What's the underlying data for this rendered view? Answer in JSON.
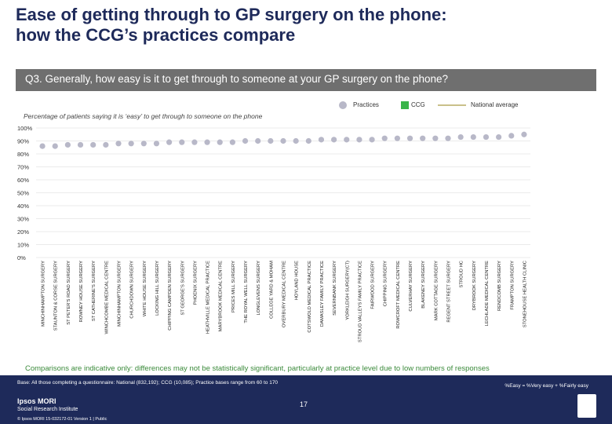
{
  "title": {
    "line1": "Ease of getting through to GP surgery on the phone:",
    "line2": "how the CCG’s practices compare"
  },
  "question": "Q3. Generally, how easy is it to get through to someone at your GP surgery on the phone?",
  "legend": {
    "practices": "Practices",
    "ccg": "CCG",
    "national": "National average"
  },
  "subtitle": "Percentage of patients saying it is ‘easy’ to get through to someone on the phone",
  "colors": {
    "practice_dot": "#b8b8c8",
    "ccg_marker": "#3ab54a",
    "national_line": "#c9c08a",
    "grid": "#d8d8d8",
    "title": "#1e2a5a",
    "question_bar": "#6f6f6f",
    "footer": "#1e2a5a",
    "disclaimer": "#3a8a3a"
  },
  "chart_data": {
    "type": "scatter",
    "ylim": [
      0,
      100
    ],
    "yticks": [
      "0%",
      "10%",
      "20%",
      "30%",
      "40%",
      "50%",
      "60%",
      "70%",
      "80%",
      "90%",
      "100%"
    ],
    "categories": [
      "MINCHINHAMPTON SURGERY",
      "STAUNTON & CORSE SURGERY",
      "ST PETER'S ROAD SURGERY",
      "ROWNEY HOUSE SURGERY",
      "ST CATHERINE'S SURGERY",
      "WINCHCOMBE MEDICAL CENTRE",
      "MINCHINHAMPTON SURGERY",
      "CHURCHDOWN SURGERY",
      "WHITE HOUSE SURGERY",
      "LOCKING HILL SURGERY",
      "CHIPPING CAMPDEN SURGERY",
      "ST GEORGE'S SURGERY",
      "PHOENIX SURGERY",
      "HEATHVILLE MEDICAL PRACTICE",
      "MARYBROOK MEDICAL CENTRE",
      "PRICES MILL SURGERY",
      "THE ROYAL WELL SURGERY",
      "LONGLEVENS SURGERY",
      "COLLEGE YARD & MOHAM",
      "OVERBURY MEDICAL CENTRE",
      "HOYLAND HOUSE",
      "COTSWOLD MEDICAL PRACTICE",
      "DAMASLEY FAMILY PRACTICE",
      "SEVERNBANK SURGERY",
      "YORKLEIGH SURGERY(CT)",
      "STROUD VALLEYS FAMILY PRACTICE",
      "FAIRWOOD SURGERY",
      "CHIPPING SURGERY",
      "ROWCROFT MEDICAL CENTRE",
      "CULVERHAY SURGERY",
      "BLAKENEY SURGERY",
      "MARK COTTAGE SURGERY",
      "REGENT STREET SURGERY",
      "STROUD HC",
      "DRYBROOK SURGERY",
      "LECHLADE MEDICAL CENTRE",
      "RENDCOMB SURGERY",
      "FRAMPTON SURGERY",
      "STONEHOUSE HEALTH CLINIC"
    ],
    "series": [
      {
        "values": [
          86,
          86,
          87,
          87,
          87,
          87,
          88,
          88,
          88,
          88,
          89,
          89,
          89,
          89,
          89,
          89,
          90,
          90,
          90,
          90,
          90,
          90,
          91,
          91,
          91,
          91,
          91,
          92,
          92,
          92,
          92,
          92,
          92,
          93,
          93,
          93,
          93,
          94,
          95
        ]
      }
    ],
    "ccg_value": null,
    "national_average": null
  },
  "disclaimer": "Comparisons are indicative only: differences may not be statistically significant, particularly at practice level due to low numbers of responses",
  "footer": {
    "base": "Base: All those completing a questionnaire: National (832,192); CCG (10,085); Practice bases range from 60 to 170",
    "easy_definition": "%Easy = %Very easy + %Fairly easy",
    "logo_name": "Ipsos MORI",
    "logo_sub": "Social Research Institute",
    "copyright": "© Ipsos MORI    15-032172-01 Version 1 | Public",
    "page_number": "17"
  }
}
